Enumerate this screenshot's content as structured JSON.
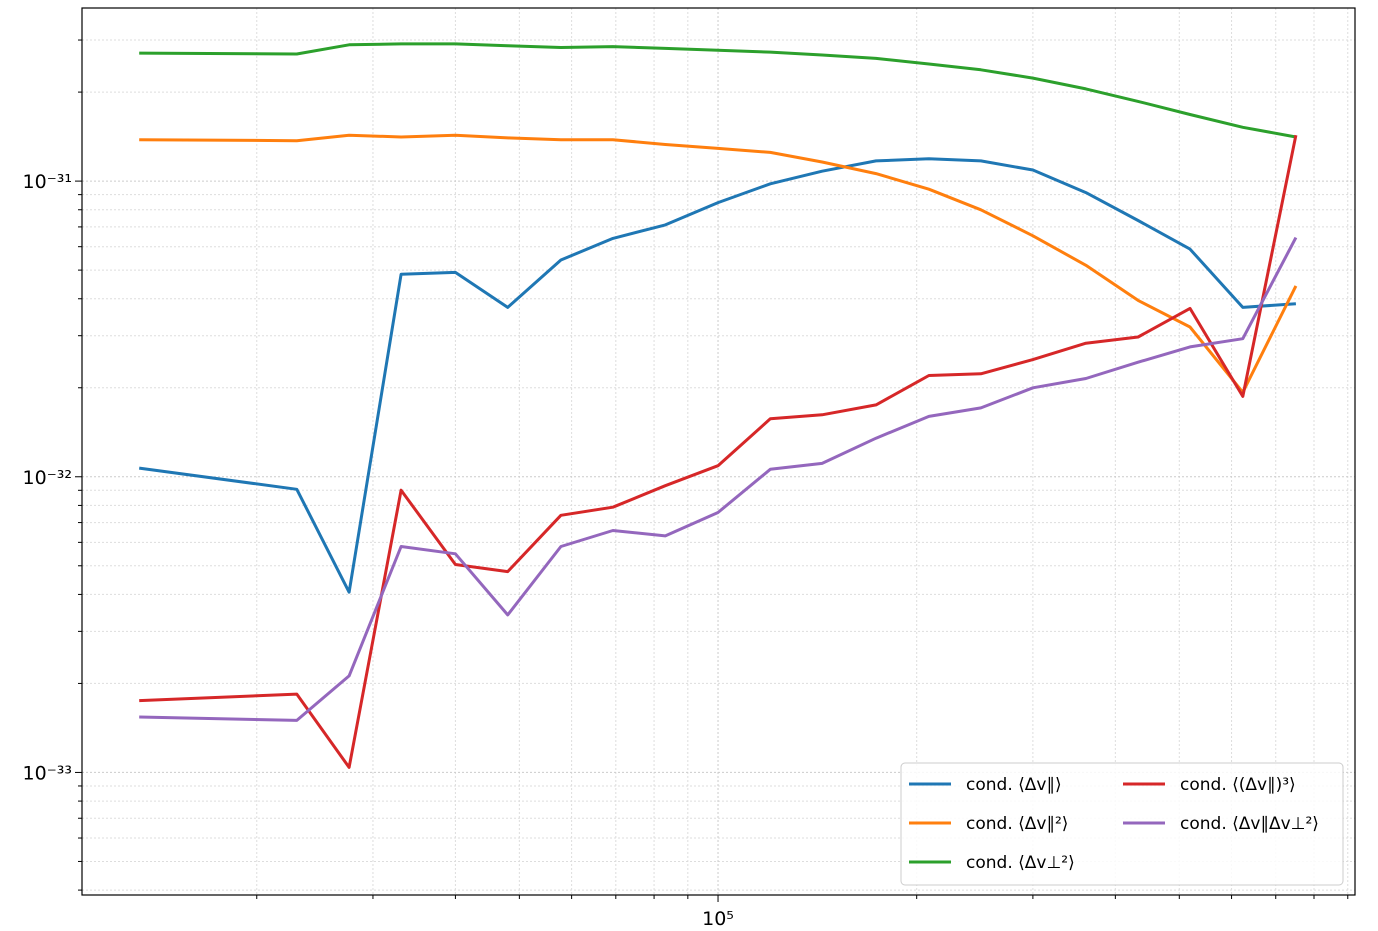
{
  "chart_data": {
    "type": "line",
    "xscale": "log",
    "yscale": "log",
    "grid": true,
    "legend": "lower right",
    "x": [
      13270,
      23000,
      27600,
      33100,
      40000,
      48000,
      57800,
      69300,
      83200,
      100000,
      120000,
      143800,
      173500,
      208700,
      250200,
      300000,
      361000,
      433000,
      519000,
      624000,
      751000
    ],
    "xlim": [
      10870,
      923000
    ],
    "xticks": [
      {
        "value": 100000,
        "label": "10⁵"
      }
    ],
    "ylim": [
      3.85e-34,
      3.85e-31
    ],
    "yticks": [
      {
        "value": 1e-33,
        "label": "10⁻³³"
      },
      {
        "value": 1e-32,
        "label": "10⁻³²"
      },
      {
        "value": 1e-31,
        "label": "10⁻³¹"
      }
    ],
    "series": [
      {
        "name": "cond. ⟨Δv∥⟩",
        "color": "#1f77b4",
        "values": [
          1.07e-32,
          9.07e-33,
          4.07e-33,
          4.84e-32,
          4.91e-32,
          3.74e-32,
          5.41e-32,
          6.4e-32,
          7.11e-32,
          8.46e-32,
          9.79e-32,
          1.08e-31,
          1.17e-31,
          1.19e-31,
          1.17e-31,
          1.09e-31,
          9.14e-32,
          7.36e-32,
          5.89e-32,
          3.74e-32,
          3.85e-32
        ]
      },
      {
        "name": "cond. ⟨Δv∥²⟩",
        "color": "#ff7f0e",
        "values": [
          1.38e-31,
          1.37e-31,
          1.43e-31,
          1.41e-31,
          1.43e-31,
          1.4e-31,
          1.38e-31,
          1.38e-31,
          1.33e-31,
          1.29e-31,
          1.25e-31,
          1.16e-31,
          1.06e-31,
          9.39e-32,
          8e-32,
          6.53e-32,
          5.19e-32,
          3.95e-32,
          3.21e-32,
          1.93e-32,
          4.42e-32
        ]
      },
      {
        "name": "cond. ⟨Δv⊥²⟩",
        "color": "#2ca02c",
        "values": [
          2.71e-31,
          2.69e-31,
          2.89e-31,
          2.91e-31,
          2.91e-31,
          2.87e-31,
          2.83e-31,
          2.85e-31,
          2.81e-31,
          2.77e-31,
          2.73e-31,
          2.67e-31,
          2.6e-31,
          2.49e-31,
          2.38e-31,
          2.23e-31,
          2.05e-31,
          1.86e-31,
          1.68e-31,
          1.52e-31,
          1.41e-31
        ]
      },
      {
        "name": "cond. ⟨(Δv∥)³⟩",
        "color": "#d62728",
        "values": [
          1.75e-33,
          1.84e-33,
          1.04e-33,
          9.01e-33,
          5.05e-33,
          4.78e-33,
          7.41e-33,
          7.89e-33,
          9.33e-33,
          1.09e-32,
          1.57e-32,
          1.62e-32,
          1.75e-32,
          2.2e-32,
          2.23e-32,
          2.49e-32,
          2.83e-32,
          2.97e-32,
          3.71e-32,
          1.87e-32,
          1.43e-31
        ]
      },
      {
        "name": "cond. ⟨Δv∥Δv⊥²⟩",
        "color": "#9467bd",
        "values": [
          1.54e-33,
          1.5e-33,
          2.12e-33,
          5.81e-33,
          5.49e-33,
          3.41e-33,
          5.81e-33,
          6.58e-33,
          6.31e-33,
          7.57e-33,
          1.06e-32,
          1.11e-32,
          1.35e-32,
          1.6e-32,
          1.71e-32,
          2e-32,
          2.15e-32,
          2.44e-32,
          2.75e-32,
          2.93e-32,
          6.44e-32
        ]
      }
    ]
  }
}
